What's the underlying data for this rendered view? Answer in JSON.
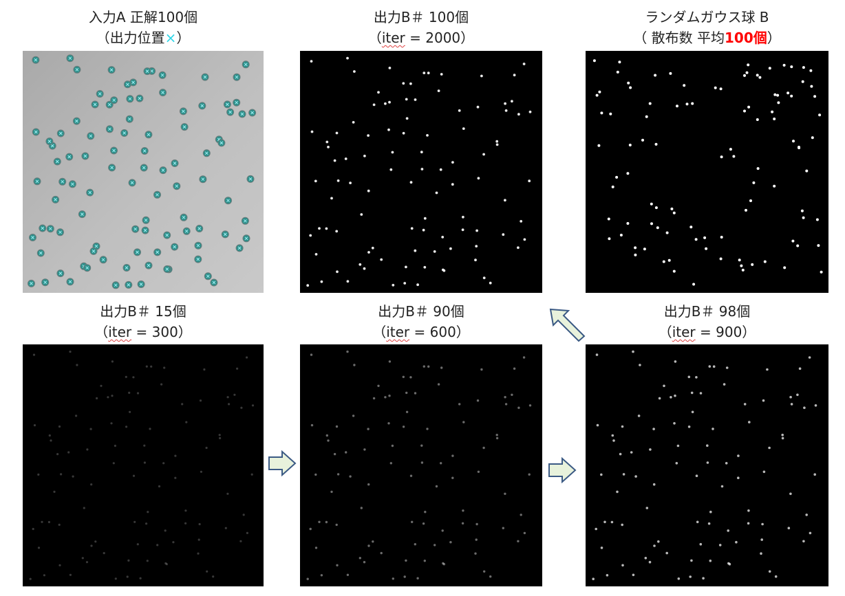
{
  "panels": [
    {
      "id": "input_a",
      "title": "入力A 正解100個",
      "sub_pre": "（出力位置",
      "sub_mark": "×",
      "sub_post": "）"
    },
    {
      "id": "out_2000",
      "title": "出力B＃ 100個",
      "sub_pre": "（",
      "sub_iter": "iter",
      "sub_post": " = 2000）"
    },
    {
      "id": "random",
      "title": "ランダムガウス球 B",
      "sub_pre": "（ 散布数 平均",
      "sub_red": "100個",
      "sub_post": "）"
    },
    {
      "id": "out_300",
      "title": "出力B＃ 15個",
      "sub_pre": "（",
      "sub_iter": "iter",
      "sub_post": " = 300）"
    },
    {
      "id": "out_600",
      "title": "出力B＃ 90個",
      "sub_pre": "（",
      "sub_iter": "iter",
      "sub_post": " = 600）"
    },
    {
      "id": "out_900",
      "title": "出力B＃ 98個",
      "sub_pre": "（",
      "sub_iter": "iter",
      "sub_post": " = 900）"
    }
  ],
  "colors": {
    "accent_red": "#ff0000",
    "marker_cyan": "#2fd6e8",
    "arrow_fill": "#e8f2dc",
    "arrow_stroke": "#3b5a84",
    "bead_fill": "#2f8f8a",
    "input_background": "#bdbdbd",
    "output_background": "#000000"
  },
  "icons": [
    "right-arrow-icon",
    "right-arrow-icon",
    "up-left-arrow-icon"
  ]
}
